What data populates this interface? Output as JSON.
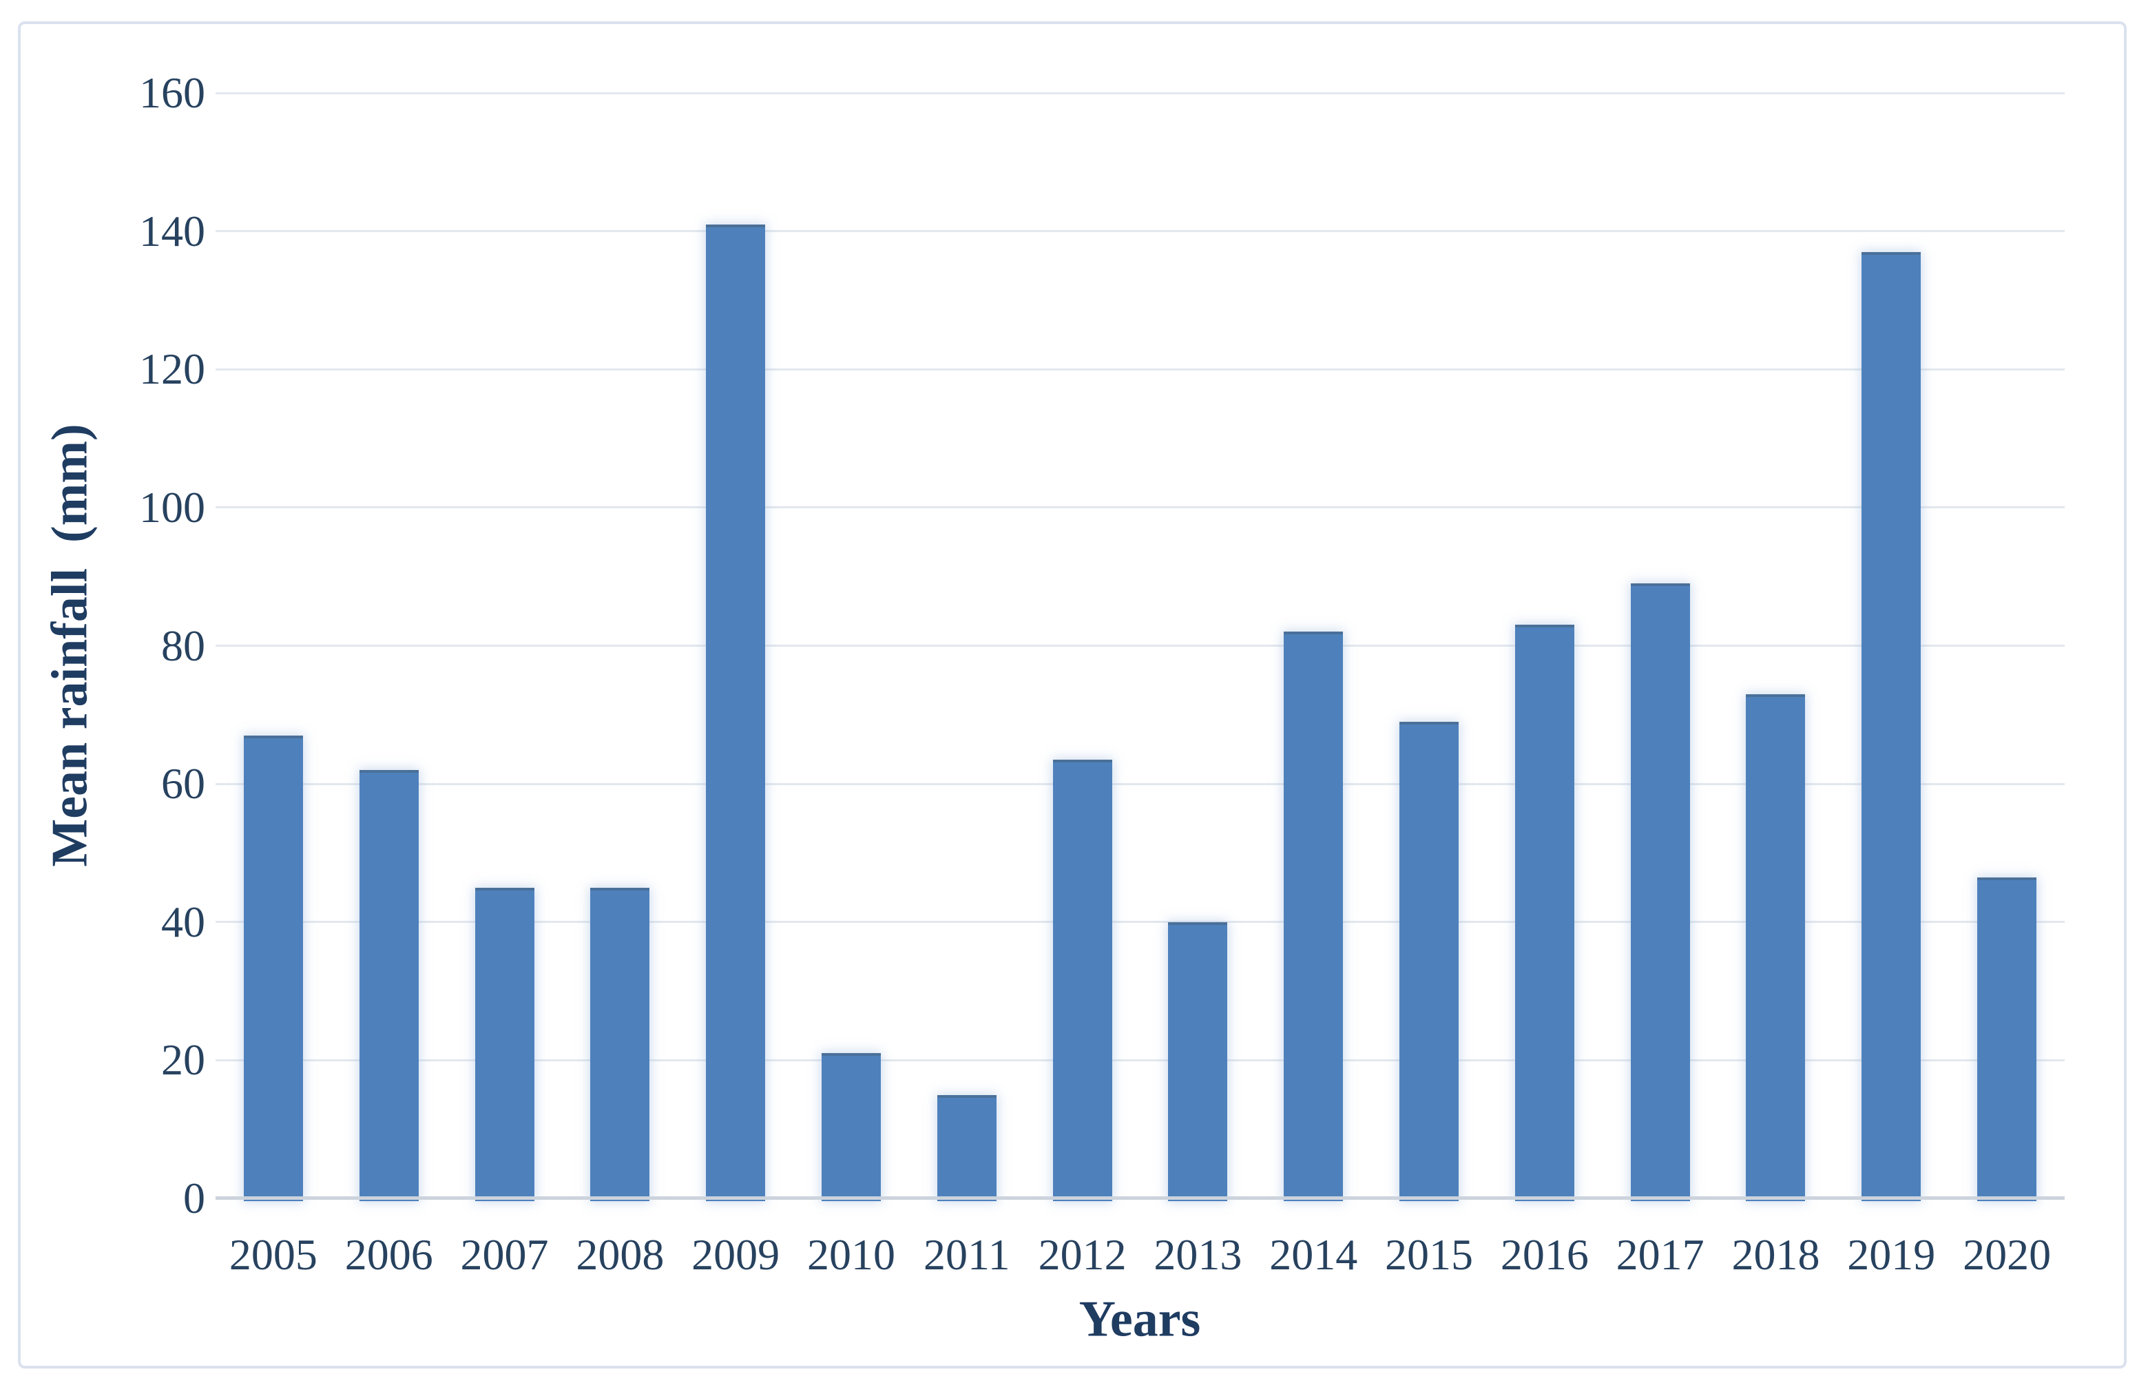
{
  "chart_data": {
    "type": "bar",
    "categories": [
      "2005",
      "2006",
      "2007",
      "2008",
      "2009",
      "2010",
      "2011",
      "2012",
      "2013",
      "2014",
      "2015",
      "2016",
      "2017",
      "2018",
      "2019",
      "2020"
    ],
    "values": [
      67,
      62,
      45,
      45,
      141,
      21,
      15,
      63.5,
      40,
      82,
      69,
      83,
      89,
      73,
      137,
      46.5
    ],
    "title": "",
    "xlabel": "Years",
    "ylabel": "Mean rainfall  (mm)",
    "ylim": [
      0,
      160
    ],
    "yticks": [
      0,
      20,
      40,
      60,
      80,
      100,
      120,
      140,
      160
    ],
    "grid": "horizontal-only",
    "legend": "none",
    "bar_color": "#4e81bc",
    "bar_top_edge_color": "#4a7099",
    "gridline_color": "#e3e8ee",
    "baseline_color": "#ccd3dc",
    "tick_label_color": "#27425f",
    "axis_title_color": "#1f3c61",
    "frame_border_color": "#dbe1ee",
    "background_color": "#ffffff"
  }
}
